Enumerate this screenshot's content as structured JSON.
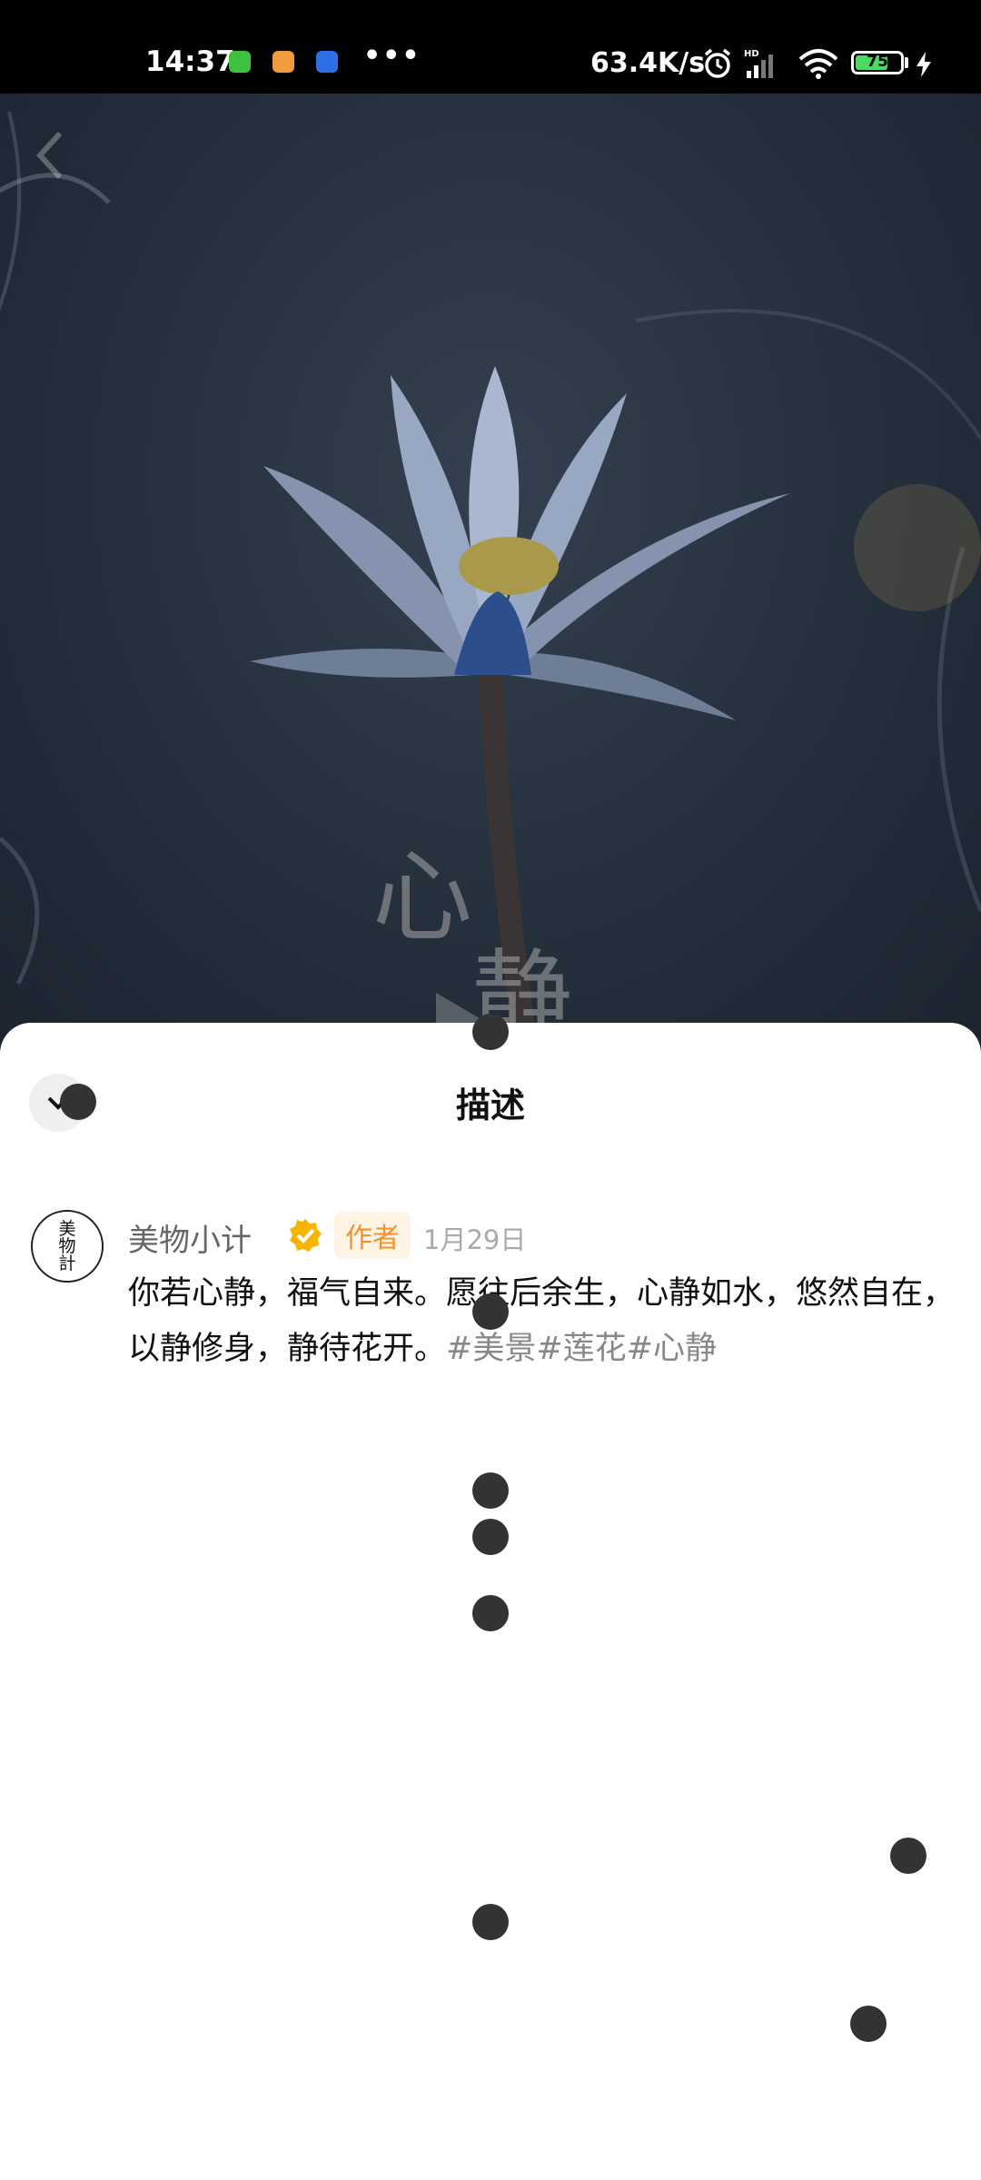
{
  "status_bar": {
    "time": "14:37",
    "overflow_dots": "•••",
    "network_speed": "63.4K/s",
    "battery_level": "75",
    "battery_fraction": 0.75
  },
  "video": {
    "overlay_text_line1": "心",
    "overlay_text_line2": "静"
  },
  "sheet": {
    "title": "描述",
    "author": {
      "avatar_text": "美物計",
      "name": "美物小计",
      "tag": "作者",
      "date": "1月29日"
    },
    "description": {
      "text": "你若心静，福气自来。愿往后余生，心静如水，悠然自在，以静修身，静待花开。",
      "hashtags": [
        "#美景",
        "#莲花",
        "#心静"
      ]
    }
  },
  "colors": {
    "accent_orange": "#f0932b",
    "verified_yellow": "#f7b500",
    "battery_green": "#4cd964"
  }
}
